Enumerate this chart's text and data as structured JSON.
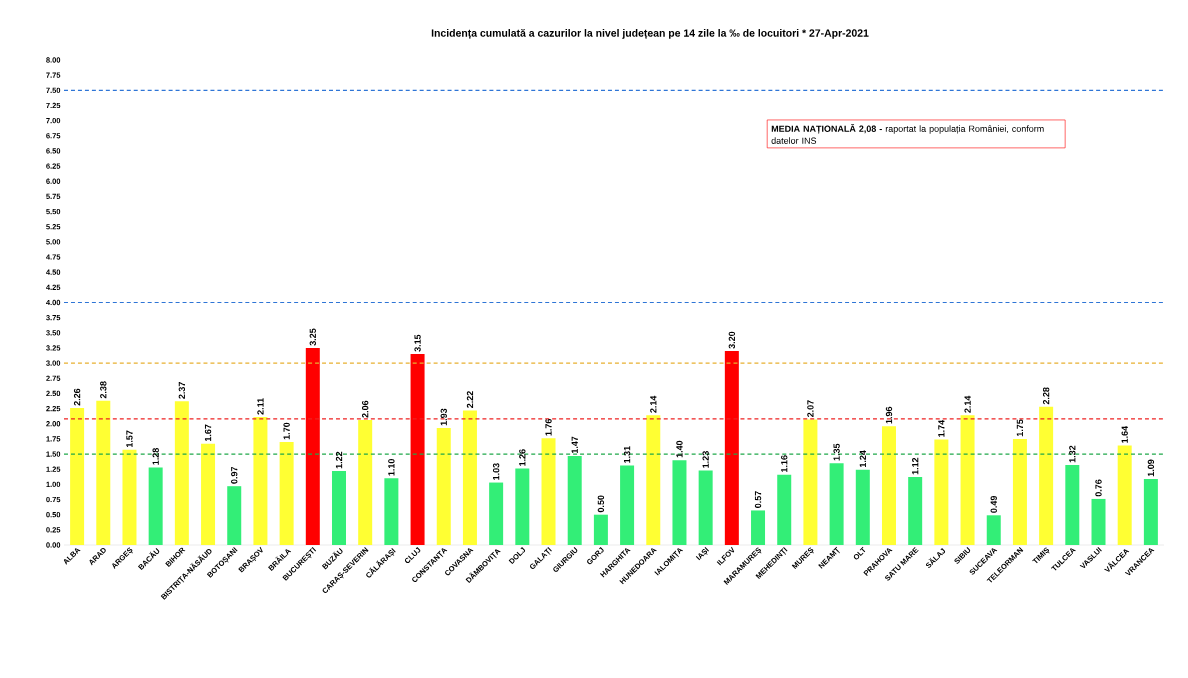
{
  "chart_data": {
    "type": "bar",
    "title": "Incidența cumulată a cazurilor la nivel județean pe 14 zile la ‰ de locuitori *   27-Apr-2021",
    "categories": [
      "ALBA",
      "ARAD",
      "ARGEȘ",
      "BACĂU",
      "BIHOR",
      "BISTRIȚA-NĂSĂUD",
      "BOTOȘANI",
      "BRAȘOV",
      "BRĂILA",
      "BUCUREȘTI",
      "BUZĂU",
      "CARAȘ-SEVERIN",
      "CĂLĂRAȘI",
      "CLUJ",
      "CONSTANȚA",
      "COVASNA",
      "DÂMBOVIȚA",
      "DOLJ",
      "GALAȚI",
      "GIURGIU",
      "GORJ",
      "HARGHITA",
      "HUNEDOARA",
      "IALOMIȚA",
      "IAȘI",
      "ILFOV",
      "MARAMUREȘ",
      "MEHEDINȚI",
      "MUREȘ",
      "NEAMȚ",
      "OLT",
      "PRAHOVA",
      "SATU MARE",
      "SĂLAJ",
      "SIBIU",
      "SUCEAVA",
      "TELEORMAN",
      "TIMIȘ",
      "TULCEA",
      "VASLUI",
      "VÂLCEA",
      "VRANCEA"
    ],
    "values": [
      2.26,
      2.38,
      1.57,
      1.28,
      2.37,
      1.67,
      0.97,
      2.11,
      1.7,
      3.25,
      1.22,
      2.06,
      1.1,
      3.15,
      1.93,
      2.22,
      1.03,
      1.26,
      1.76,
      1.47,
      0.5,
      1.31,
      2.14,
      1.4,
      1.23,
      3.2,
      0.57,
      1.16,
      2.07,
      1.35,
      1.24,
      1.96,
      1.12,
      1.74,
      2.14,
      0.49,
      1.75,
      2.28,
      1.32,
      0.76,
      1.64,
      1.09
    ],
    "value_labels": [
      "2.26",
      "2.38",
      "1.57",
      "1.28",
      "2.37",
      "1.67",
      "0.97",
      "2.11",
      "1.70",
      "3.25",
      "1.22",
      "2.06",
      "1.10",
      "3.15",
      "1.93",
      "2.22",
      "1.03",
      "1.26",
      "1.76",
      "1.47",
      "0.50",
      "1.31",
      "2.14",
      "1.40",
      "1.23",
      "3.20",
      "0.57",
      "1.16",
      "2.07",
      "1.35",
      "1.24",
      "1.96",
      "1.12",
      "1.74",
      "2.14",
      "0.49",
      "1.75",
      "2.28",
      "1.32",
      "0.76",
      "1.64",
      "1.09"
    ],
    "colors": [
      "#ffff33",
      "#ffff33",
      "#ffff33",
      "#33ee77",
      "#ffff33",
      "#ffff33",
      "#33ee77",
      "#ffff33",
      "#ffff33",
      "#ff0000",
      "#33ee77",
      "#ffff33",
      "#33ee77",
      "#ff0000",
      "#ffff33",
      "#ffff33",
      "#33ee77",
      "#33ee77",
      "#ffff33",
      "#33ee77",
      "#33ee77",
      "#33ee77",
      "#ffff33",
      "#33ee77",
      "#33ee77",
      "#ff0000",
      "#33ee77",
      "#33ee77",
      "#ffff33",
      "#33ee77",
      "#33ee77",
      "#ffff33",
      "#33ee77",
      "#ffff33",
      "#ffff33",
      "#33ee77",
      "#ffff33",
      "#ffff33",
      "#33ee77",
      "#33ee77",
      "#ffff33",
      "#33ee77"
    ],
    "ylim": [
      0,
      8
    ],
    "yticks": [
      {
        "value": 0,
        "label": "0.00"
      },
      {
        "value": 0.25,
        "label": "0.25"
      },
      {
        "value": 0.5,
        "label": "0.50"
      },
      {
        "value": 0.75,
        "label": "0.75"
      },
      {
        "value": 1,
        "label": "1.00"
      },
      {
        "value": 1.25,
        "label": "1.25"
      },
      {
        "value": 1.5,
        "label": "1.50"
      },
      {
        "value": 1.75,
        "label": "1.75"
      },
      {
        "value": 2,
        "label": "2.00"
      },
      {
        "value": 2.25,
        "label": "2.25"
      },
      {
        "value": 2.5,
        "label": "2.50"
      },
      {
        "value": 2.75,
        "label": "2.75"
      },
      {
        "value": 3,
        "label": "3.00"
      },
      {
        "value": 3.25,
        "label": "3.25"
      },
      {
        "value": 3.5,
        "label": "3.50"
      },
      {
        "value": 3.75,
        "label": "3.75"
      },
      {
        "value": 4,
        "label": "4.00"
      },
      {
        "value": 4.25,
        "label": "4.25"
      },
      {
        "value": 4.5,
        "label": "4.50"
      },
      {
        "value": 4.75,
        "label": "4.75"
      },
      {
        "value": 5,
        "label": "5.00"
      },
      {
        "value": 5.25,
        "label": "5.25"
      },
      {
        "value": 5.5,
        "label": "5.50"
      },
      {
        "value": 5.75,
        "label": "5.75"
      },
      {
        "value": 6,
        "label": "6.00"
      },
      {
        "value": 6.25,
        "label": "6.25"
      },
      {
        "value": 6.5,
        "label": "6.50"
      },
      {
        "value": 6.75,
        "label": "6.75"
      },
      {
        "value": 7,
        "label": "7.00"
      },
      {
        "value": 7.25,
        "label": "7.25"
      },
      {
        "value": 7.5,
        "label": "7.50"
      },
      {
        "value": 7.75,
        "label": "7.75"
      },
      {
        "value": 8,
        "label": "8.00"
      }
    ],
    "ref_lines": [
      {
        "axis": "y",
        "value": 1.5,
        "color": "#1fa84a",
        "line_style": "dashed"
      },
      {
        "axis": "y",
        "value": 2.08,
        "color": "#ee2222",
        "line_style": "dashed"
      },
      {
        "axis": "y",
        "value": 3.0,
        "color": "#e8b030",
        "line_style": "dashed"
      },
      {
        "axis": "y",
        "value": 4.0,
        "color": "#2e75d6",
        "line_style": "dashed"
      },
      {
        "axis": "y",
        "value": 7.5,
        "color": "#2e75d6",
        "line_style": "dashed"
      }
    ],
    "annotations": [
      "**MEDIA NAȚIONALĂ  2,08 -** raportat la populația României, conform datelor INS"
    ]
  }
}
